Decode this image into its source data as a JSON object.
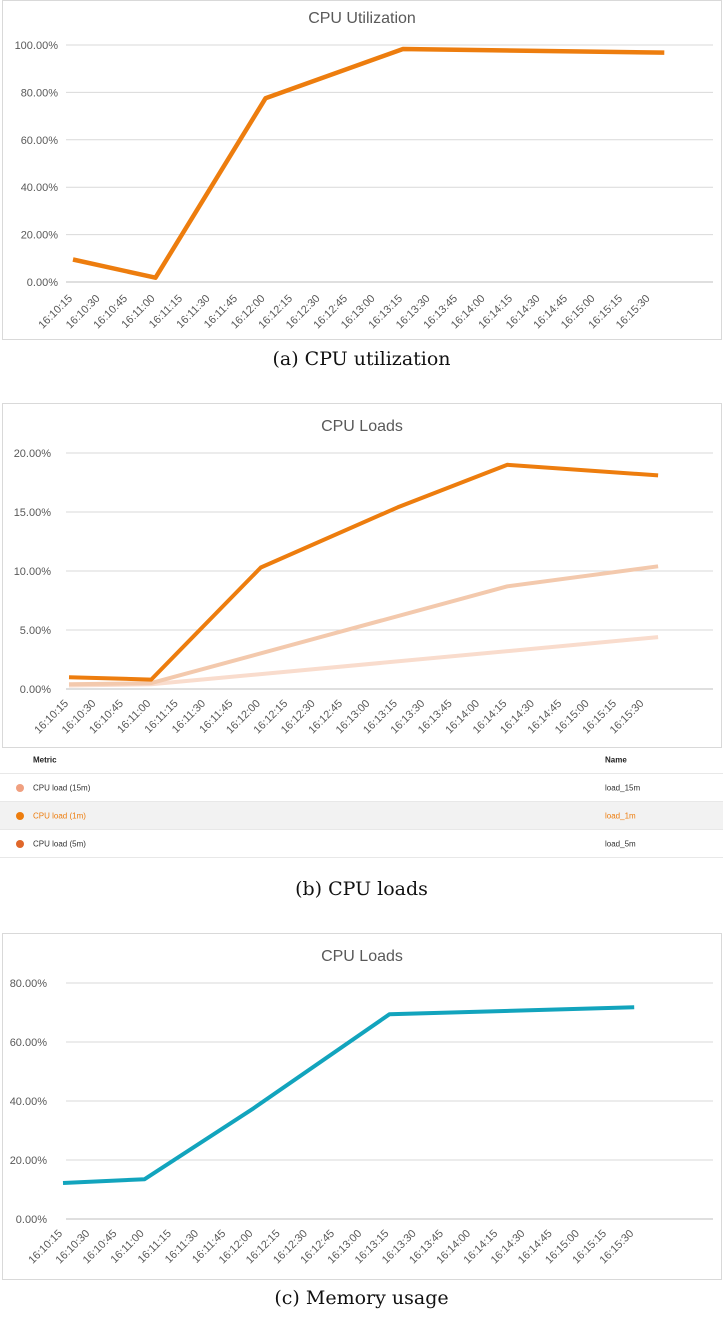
{
  "chart_data": [
    {
      "id": "a",
      "type": "line",
      "title": "CPU Utilization",
      "caption": "(a) CPU utilization",
      "categories": [
        "16:10:15",
        "16:10:30",
        "16:10:45",
        "16:11:00",
        "16:11:15",
        "16:11:30",
        "16:11:45",
        "16:12:00",
        "16:12:15",
        "16:12:30",
        "16:12:45",
        "16:13:00",
        "16:13:15",
        "16:13:30",
        "16:13:45",
        "16:14:00",
        "16:14:15",
        "16:14:30",
        "16:14:45",
        "16:15:00",
        "16:15:15",
        "16:15:30"
      ],
      "ylim": [
        0,
        100
      ],
      "yticks": [
        "0.00%",
        "20.00%",
        "40.00%",
        "60.00%",
        "80.00%",
        "100.00%"
      ],
      "grid": true,
      "series": [
        {
          "name": "CPU utilization",
          "color": "#ed7d0e",
          "points": [
            [
              0,
              9.5
            ],
            [
              3,
              1.8
            ],
            [
              7,
              77.5
            ],
            [
              12,
              98.3
            ],
            [
              21.5,
              96.8
            ]
          ]
        }
      ]
    },
    {
      "id": "b",
      "type": "line",
      "title": "CPU Loads",
      "caption": "(b) CPU loads",
      "categories": [
        "16:10:15",
        "16:10:30",
        "16:10:45",
        "16:11:00",
        "16:11:15",
        "16:11:30",
        "16:11:45",
        "16:12:00",
        "16:12:15",
        "16:12:30",
        "16:12:45",
        "16:13:00",
        "16:13:15",
        "16:13:30",
        "16:13:45",
        "16:14:00",
        "16:14:15",
        "16:14:30",
        "16:14:45",
        "16:15:00",
        "16:15:15",
        "16:15:30"
      ],
      "ylim": [
        0,
        20
      ],
      "yticks": [
        "0.00%",
        "5.00%",
        "10.00%",
        "15.00%",
        "20.00%"
      ],
      "grid": true,
      "series": [
        {
          "name": "CPU load (15m)",
          "color": "#f9dccd",
          "points": [
            [
              0,
              0.3
            ],
            [
              3,
              0.4
            ],
            [
              21.5,
              4.4
            ]
          ]
        },
        {
          "name": "CPU load (5m)",
          "color": "#f3c9ad",
          "points": [
            [
              0,
              0.4
            ],
            [
              3,
              0.5
            ],
            [
              16,
              8.7
            ],
            [
              21.5,
              10.4
            ]
          ]
        },
        {
          "name": "CPU load (1m)",
          "color": "#ed7d0e",
          "points": [
            [
              0,
              1.0
            ],
            [
              3,
              0.8
            ],
            [
              7,
              10.3
            ],
            [
              12,
              15.4
            ],
            [
              16,
              19.0
            ],
            [
              21.5,
              18.1
            ]
          ]
        }
      ]
    },
    {
      "id": "c",
      "type": "line",
      "title": "CPU Loads",
      "caption": "(c) Memory usage",
      "categories": [
        "16:10:15",
        "16:10:30",
        "16:10:45",
        "16:11:00",
        "16:11:15",
        "16:11:30",
        "16:11:45",
        "16:12:00",
        "16:12:15",
        "16:12:30",
        "16:12:45",
        "16:13:00",
        "16:13:15",
        "16:13:30",
        "16:13:45",
        "16:14:00",
        "16:14:15",
        "16:14:30",
        "16:14:45",
        "16:15:00",
        "16:15:15",
        "16:15:30"
      ],
      "ylim": [
        0,
        80
      ],
      "yticks": [
        "0.00%",
        "20.00%",
        "40.00%",
        "60.00%",
        "80.00%"
      ],
      "grid": true,
      "series": [
        {
          "name": "Memory usage",
          "color": "#12a4bd",
          "points": [
            [
              0,
              12.2
            ],
            [
              3,
              13.5
            ],
            [
              7,
              37.5
            ],
            [
              12,
              69.4
            ],
            [
              21,
              71.8
            ]
          ]
        }
      ]
    }
  ],
  "legend": {
    "header": {
      "metric": "Metric",
      "name": "Name"
    },
    "rows": [
      {
        "metric": "CPU load (15m)",
        "name": "load_15m",
        "color": "#f0a080",
        "selected": false
      },
      {
        "metric": "CPU load (1m)",
        "name": "load_1m",
        "color": "#ed7d0e",
        "selected": true
      },
      {
        "metric": "CPU load (5m)",
        "name": "load_5m",
        "color": "#e0672a",
        "selected": false
      }
    ]
  }
}
